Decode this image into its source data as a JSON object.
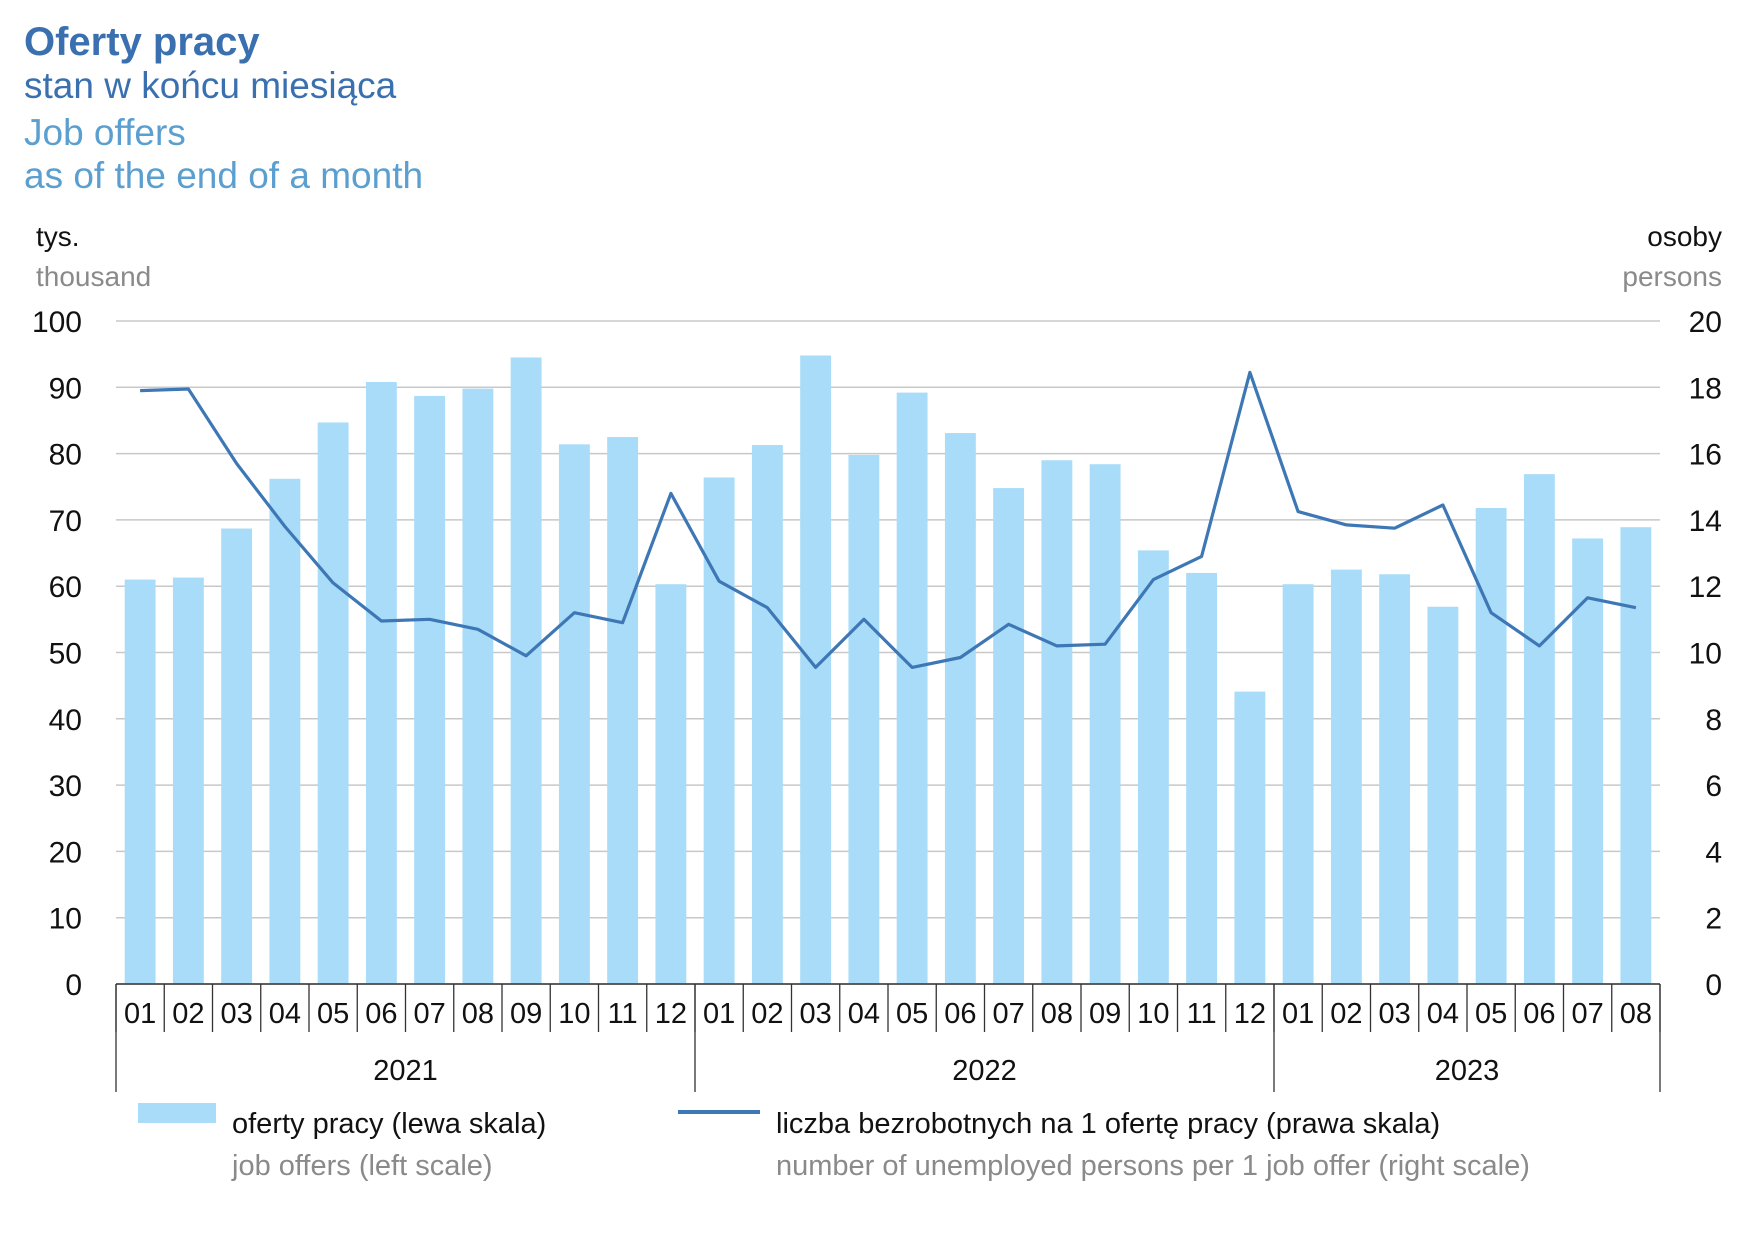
{
  "header": {
    "title": "Oferty pracy",
    "subtitle_pl": "stan w końcu miesiąca",
    "title_en": "Job offers",
    "subtitle_en": "as of the end of a month"
  },
  "axes": {
    "left_unit_pl": "tys.",
    "left_unit_en": "thousand",
    "right_unit_pl": "osoby",
    "right_unit_en": "persons"
  },
  "legend": {
    "bars_pl": "oferty pracy (lewa skala)",
    "bars_en": "job offers (left scale)",
    "line_pl": "liczba bezrobotnych na 1 ofertę pracy (prawa skala)",
    "line_en": "number of unemployed persons per 1 job offer (right scale)"
  },
  "colors": {
    "bar": "#a9dcf8",
    "line": "#3e77b5",
    "title": "#3a70b0",
    "subtitle_en": "#5b9fd0",
    "grid": "#c8c8c8"
  },
  "chart_data": {
    "type": "bar",
    "categories": [
      "01",
      "02",
      "03",
      "04",
      "05",
      "06",
      "07",
      "08",
      "09",
      "10",
      "11",
      "12",
      "01",
      "02",
      "03",
      "04",
      "05",
      "06",
      "07",
      "08",
      "09",
      "10",
      "11",
      "12",
      "01",
      "02",
      "03",
      "04",
      "05",
      "06",
      "07",
      "08"
    ],
    "groups": [
      {
        "label": "2021",
        "count": 12
      },
      {
        "label": "2022",
        "count": 12
      },
      {
        "label": "2023",
        "count": 8
      }
    ],
    "series": [
      {
        "name": "oferty pracy (lewa skala)",
        "type": "bar",
        "axis": "left",
        "values": [
          61.0,
          61.3,
          68.7,
          76.2,
          84.7,
          90.8,
          88.7,
          89.8,
          94.5,
          81.4,
          82.5,
          60.3,
          76.4,
          81.3,
          94.8,
          79.8,
          89.2,
          83.1,
          74.8,
          79.0,
          78.4,
          65.4,
          62.0,
          44.1,
          60.3,
          62.5,
          61.8,
          56.9,
          71.8,
          76.9,
          67.2,
          68.9
        ]
      },
      {
        "name": "liczba bezrobotnych na 1 ofertę pracy (prawa skala)",
        "type": "line",
        "axis": "right",
        "values": [
          17.9,
          17.95,
          15.7,
          13.8,
          12.1,
          10.95,
          11.0,
          10.7,
          9.9,
          11.2,
          10.9,
          14.8,
          12.15,
          11.35,
          9.55,
          11.0,
          9.55,
          9.85,
          10.85,
          10.2,
          10.25,
          12.2,
          12.9,
          18.45,
          14.25,
          13.85,
          13.75,
          14.45,
          11.2,
          10.2,
          11.65,
          11.35
        ]
      }
    ],
    "left_axis": {
      "ylim": [
        0,
        100
      ],
      "ticks": [
        "0",
        "10",
        "20",
        "30",
        "40",
        "50",
        "60",
        "70",
        "80",
        "90",
        "100"
      ]
    },
    "right_axis": {
      "ylim": [
        0,
        20
      ],
      "ticks": [
        "0",
        "2",
        "4",
        "6",
        "8",
        "10",
        "12",
        "14",
        "16",
        "18",
        "20"
      ]
    },
    "grid": true,
    "legend_position": "bottom"
  }
}
